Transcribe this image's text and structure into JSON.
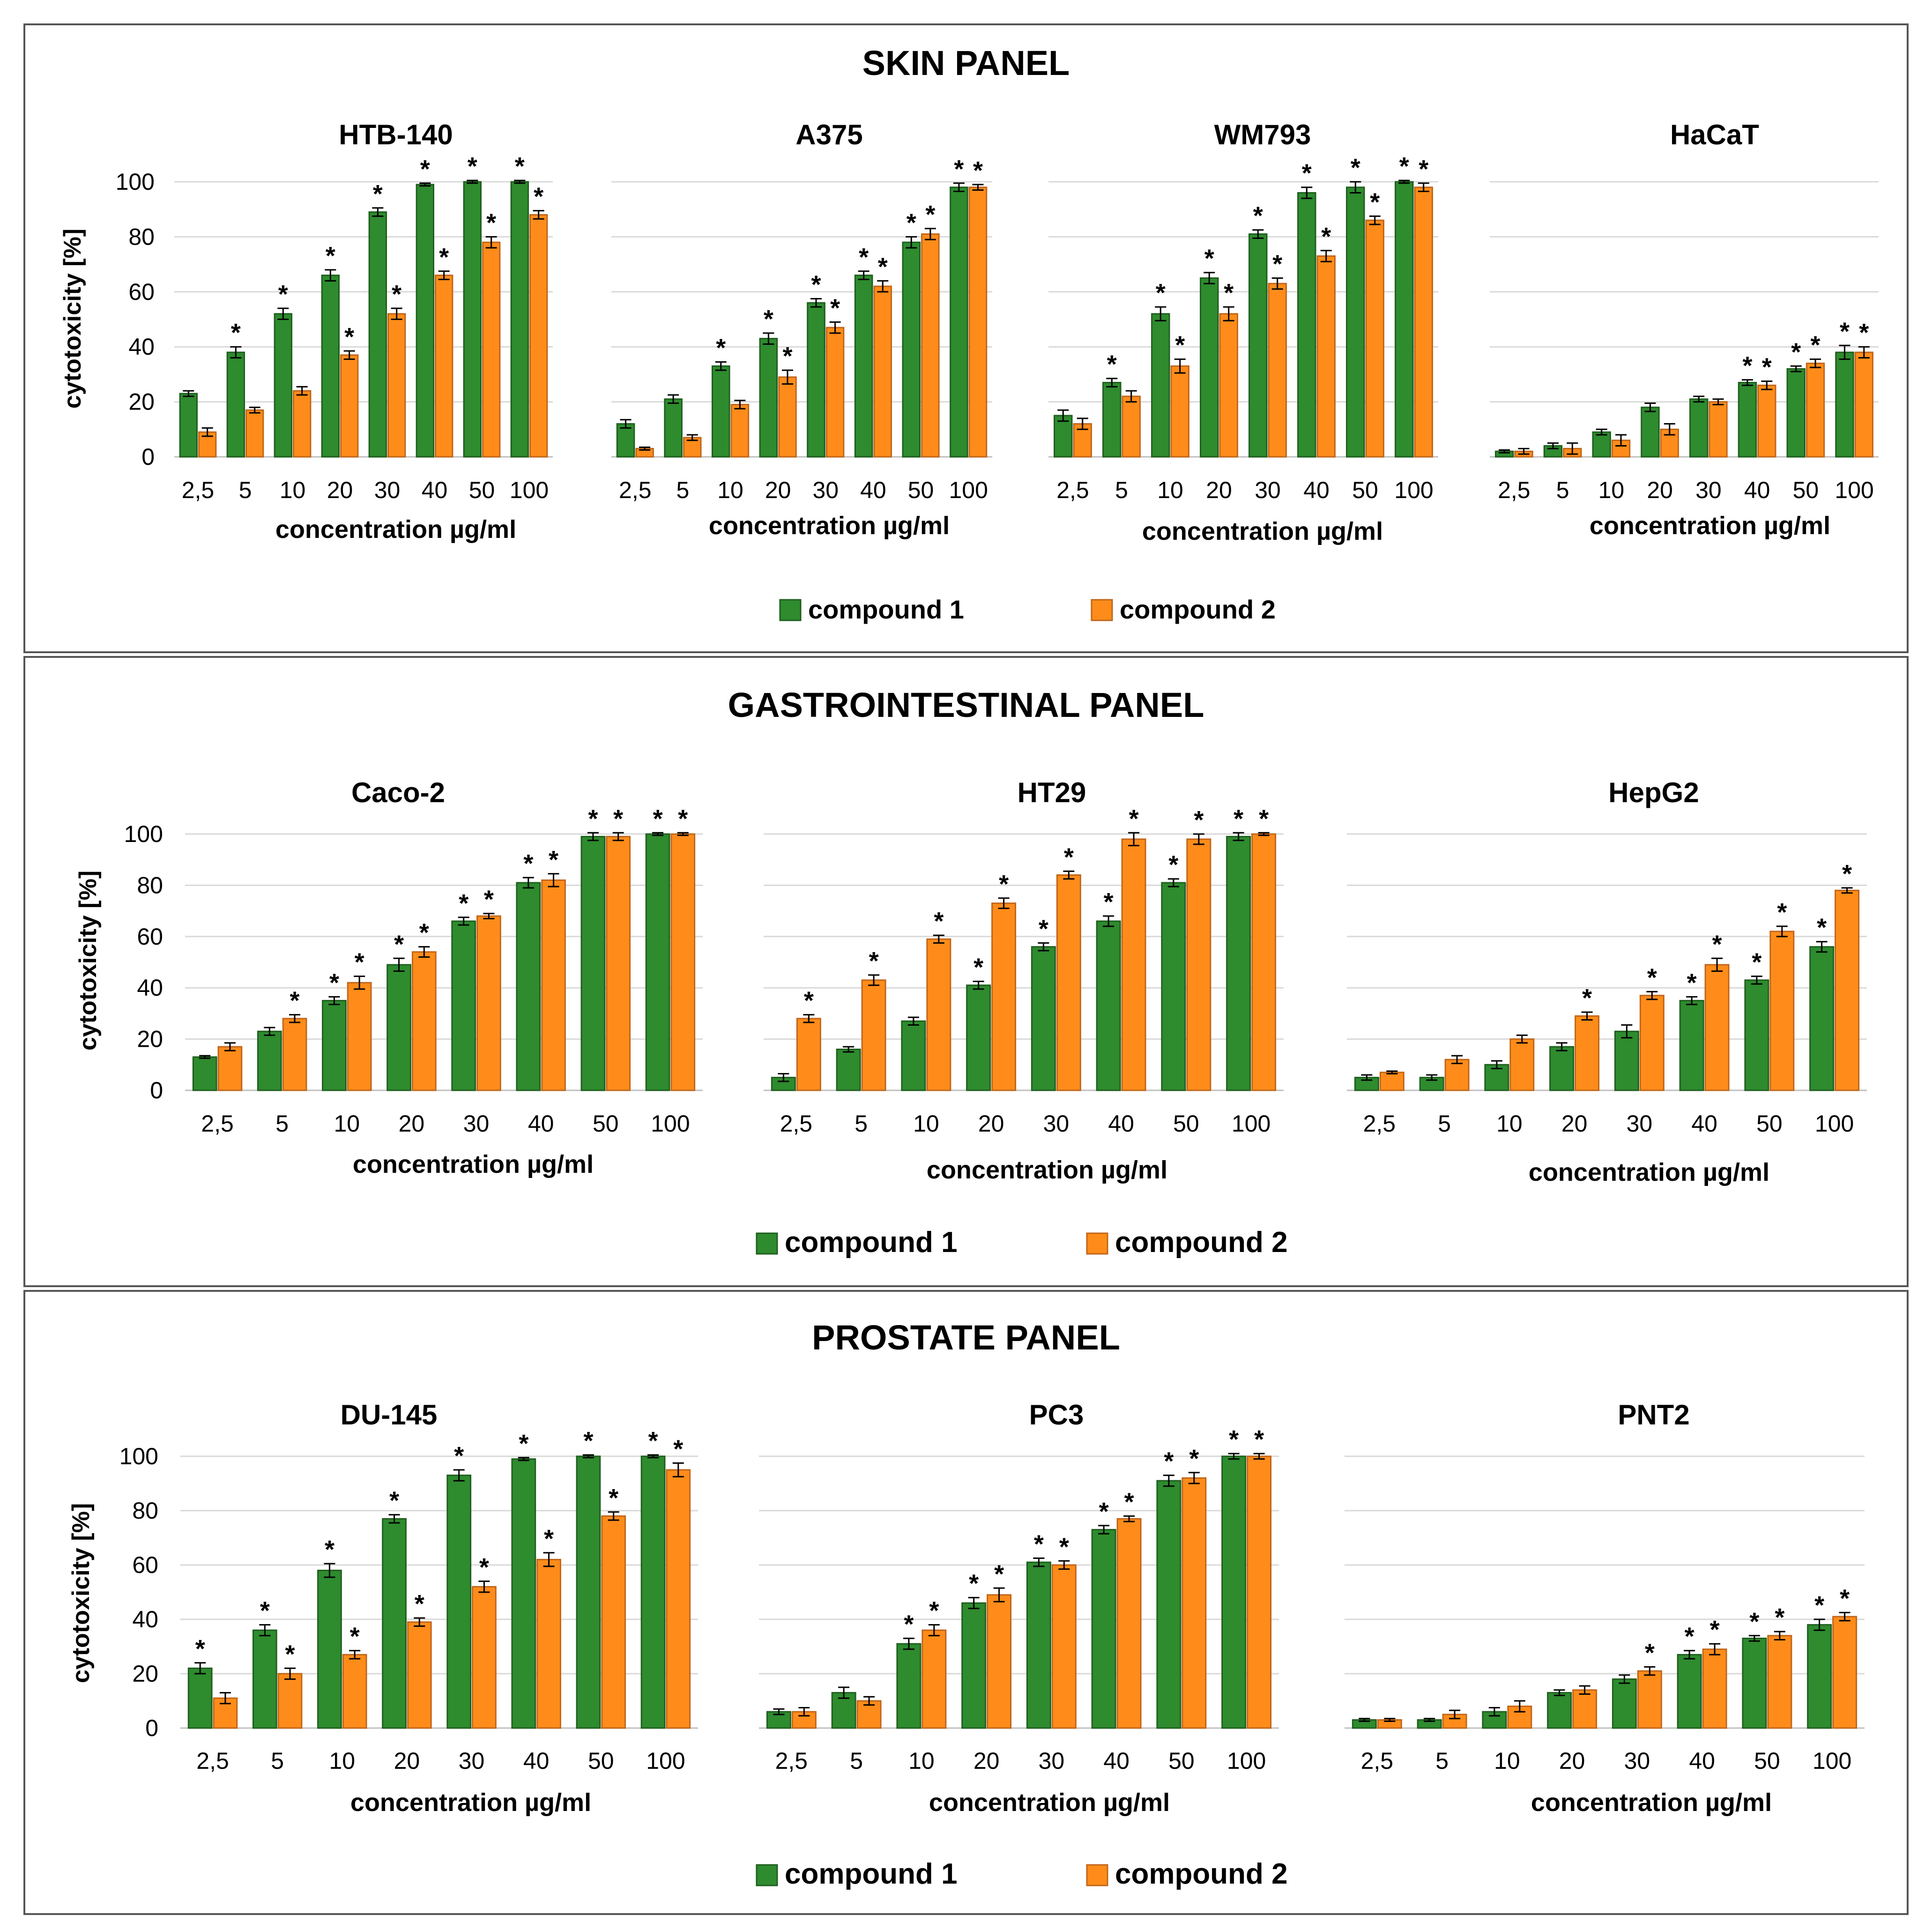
{
  "legend": {
    "compound1": "compound 1",
    "compound2": "compound 2"
  },
  "colors": {
    "compound1": "#2e8b2e",
    "compound2": "#ff8c1a",
    "frame": "#555555",
    "grid": "#d9d9d9",
    "text": "#000000"
  },
  "ylabel": "cytotoxicity [%]",
  "ylim": [
    0,
    100
  ],
  "yticks": [
    0,
    20,
    40,
    60,
    80,
    100
  ],
  "xlabel": "concentration µg/ml",
  "panels": [
    {
      "title": "SKIN PANEL",
      "charts": [
        "HTB-140",
        "A375",
        "WM793",
        "HaCaT"
      ]
    },
    {
      "title": "GASTROINTESTINAL PANEL",
      "charts": [
        "Caco-2",
        "HT29",
        "HepG2"
      ]
    },
    {
      "title": "PROSTATE PANEL",
      "charts": [
        "DU-145",
        "PC3",
        "PNT2"
      ]
    }
  ],
  "chart_data": [
    {
      "type": "bar",
      "panel": "SKIN PANEL",
      "title": "HTB-140",
      "categories": [
        "2,5",
        "5",
        "10",
        "20",
        "30",
        "40",
        "50",
        "100"
      ],
      "xlabel": "concentration µg/ml",
      "ylabel": "cytotoxicity [%]",
      "ylim": [
        0,
        100
      ],
      "series": [
        {
          "name": "compound 1",
          "values": [
            23,
            38,
            52,
            66,
            89,
            99,
            100,
            100
          ],
          "errors": [
            1,
            2,
            2,
            2,
            1.5,
            0.5,
            0.5,
            0.5
          ],
          "significant": [
            false,
            true,
            true,
            true,
            true,
            true,
            true,
            true
          ]
        },
        {
          "name": "compound 2",
          "values": [
            9,
            17,
            24,
            37,
            52,
            66,
            78,
            88
          ],
          "errors": [
            1.5,
            1,
            1.5,
            1.5,
            2,
            1.5,
            2,
            1.5
          ],
          "significant": [
            false,
            false,
            false,
            true,
            true,
            true,
            true,
            true
          ]
        }
      ]
    },
    {
      "type": "bar",
      "panel": "SKIN PANEL",
      "title": "A375",
      "categories": [
        "2,5",
        "5",
        "10",
        "20",
        "30",
        "40",
        "50",
        "100"
      ],
      "xlabel": "concentration µg/ml",
      "ylabel": "cytotoxicity [%]",
      "ylim": [
        0,
        100
      ],
      "series": [
        {
          "name": "compound 1",
          "values": [
            12,
            21,
            33,
            43,
            56,
            66,
            78,
            98
          ],
          "errors": [
            1.5,
            1.5,
            1.5,
            2,
            1.5,
            1.5,
            2,
            1.5
          ],
          "significant": [
            false,
            false,
            true,
            true,
            true,
            true,
            true,
            true
          ]
        },
        {
          "name": "compound 2",
          "values": [
            3,
            7,
            19,
            29,
            47,
            62,
            81,
            98
          ],
          "errors": [
            0.5,
            1,
            1.5,
            2.5,
            2,
            2,
            2,
            1
          ],
          "significant": [
            false,
            false,
            false,
            true,
            true,
            true,
            true,
            true
          ]
        }
      ]
    },
    {
      "type": "bar",
      "panel": "SKIN PANEL",
      "title": "WM793",
      "categories": [
        "2,5",
        "5",
        "10",
        "20",
        "30",
        "40",
        "50",
        "100"
      ],
      "xlabel": "concentration µg/ml",
      "ylabel": "cytotoxicity [%]",
      "ylim": [
        0,
        100
      ],
      "series": [
        {
          "name": "compound 1",
          "values": [
            15,
            27,
            52,
            65,
            81,
            96,
            98,
            100
          ],
          "errors": [
            2,
            1.5,
            2.5,
            2,
            1.5,
            2,
            2,
            0.5
          ],
          "significant": [
            false,
            true,
            true,
            true,
            true,
            true,
            true,
            true
          ]
        },
        {
          "name": "compound 2",
          "values": [
            12,
            22,
            33,
            52,
            63,
            73,
            86,
            98
          ],
          "errors": [
            2,
            2,
            2.5,
            2.5,
            2,
            2,
            1.5,
            1.5
          ],
          "significant": [
            false,
            false,
            true,
            true,
            true,
            true,
            true,
            true
          ]
        }
      ]
    },
    {
      "type": "bar",
      "panel": "SKIN PANEL",
      "title": "HaCaT",
      "categories": [
        "2,5",
        "5",
        "10",
        "20",
        "30",
        "40",
        "50",
        "100"
      ],
      "xlabel": "concentration µg/ml",
      "ylabel": "cytotoxicity [%]",
      "ylim": [
        0,
        100
      ],
      "series": [
        {
          "name": "compound 1",
          "values": [
            2,
            4,
            9,
            18,
            21,
            27,
            32,
            38
          ],
          "errors": [
            0.5,
            1,
            1,
            1.5,
            1,
            1,
            1,
            2.5
          ],
          "significant": [
            false,
            false,
            false,
            false,
            false,
            true,
            true,
            true
          ]
        },
        {
          "name": "compound 2",
          "values": [
            2,
            3,
            6,
            10,
            20,
            26,
            34,
            38
          ],
          "errors": [
            1,
            2,
            2,
            2,
            1,
            1.5,
            1.5,
            2
          ],
          "significant": [
            false,
            false,
            false,
            false,
            false,
            true,
            true,
            true
          ]
        }
      ]
    },
    {
      "type": "bar",
      "panel": "GASTROINTESTINAL PANEL",
      "title": "Caco-2",
      "categories": [
        "2,5",
        "5",
        "10",
        "20",
        "30",
        "40",
        "50",
        "100"
      ],
      "xlabel": "concentration µg/ml",
      "ylabel": "cytotoxicity [%]",
      "ylim": [
        0,
        100
      ],
      "series": [
        {
          "name": "compound 1",
          "values": [
            13,
            23,
            35,
            49,
            66,
            81,
            99,
            100
          ],
          "errors": [
            0.5,
            1.5,
            1.5,
            2.5,
            1.5,
            2,
            1.5,
            0.5
          ],
          "significant": [
            false,
            false,
            true,
            true,
            true,
            true,
            true,
            true
          ]
        },
        {
          "name": "compound 2",
          "values": [
            17,
            28,
            42,
            54,
            68,
            82,
            99,
            100
          ],
          "errors": [
            1.5,
            1.5,
            2.5,
            2,
            1,
            2.5,
            1.5,
            0.5
          ],
          "significant": [
            false,
            true,
            true,
            true,
            true,
            true,
            true,
            true
          ]
        }
      ]
    },
    {
      "type": "bar",
      "panel": "GASTROINTESTINAL PANEL",
      "title": "HT29",
      "categories": [
        "2,5",
        "5",
        "10",
        "20",
        "30",
        "40",
        "50",
        "100"
      ],
      "xlabel": "concentration µg/ml",
      "ylabel": "cytotoxicity [%]",
      "ylim": [
        0,
        100
      ],
      "series": [
        {
          "name": "compound 1",
          "values": [
            5,
            16,
            27,
            41,
            56,
            66,
            81,
            99
          ],
          "errors": [
            1.5,
            1,
            1.5,
            1.5,
            1.5,
            2,
            1.5,
            1.5
          ],
          "significant": [
            false,
            false,
            false,
            true,
            true,
            true,
            true,
            true
          ]
        },
        {
          "name": "compound 2",
          "values": [
            28,
            43,
            59,
            73,
            84,
            98,
            98,
            100
          ],
          "errors": [
            1.5,
            2,
            1.5,
            2,
            1.5,
            2.5,
            2,
            0.5
          ],
          "significant": [
            true,
            true,
            true,
            true,
            true,
            true,
            true,
            true
          ]
        }
      ]
    },
    {
      "type": "bar",
      "panel": "GASTROINTESTINAL PANEL",
      "title": "HepG2",
      "categories": [
        "2,5",
        "5",
        "10",
        "20",
        "30",
        "40",
        "50",
        "100"
      ],
      "xlabel": "concentration µg/ml",
      "ylabel": "cytotoxicity [%]",
      "ylim": [
        0,
        100
      ],
      "series": [
        {
          "name": "compound 1",
          "values": [
            5,
            5,
            10,
            17,
            23,
            35,
            43,
            56
          ],
          "errors": [
            1,
            1,
            1.5,
            1.5,
            2.5,
            1.5,
            1.5,
            2
          ],
          "significant": [
            false,
            false,
            false,
            false,
            false,
            true,
            true,
            true
          ]
        },
        {
          "name": "compound 2",
          "values": [
            7,
            12,
            20,
            29,
            37,
            49,
            62,
            78
          ],
          "errors": [
            0.5,
            1.5,
            1.5,
            1.5,
            1.5,
            2.5,
            2,
            1
          ],
          "significant": [
            false,
            false,
            false,
            true,
            true,
            true,
            true,
            true
          ]
        }
      ]
    },
    {
      "type": "bar",
      "panel": "PROSTATE PANEL",
      "title": "DU-145",
      "categories": [
        "2,5",
        "5",
        "10",
        "20",
        "30",
        "40",
        "50",
        "100"
      ],
      "xlabel": "concentration µg/ml",
      "ylabel": "cytotoxicity [%]",
      "ylim": [
        0,
        100
      ],
      "series": [
        {
          "name": "compound 1",
          "values": [
            22,
            36,
            58,
            77,
            93,
            99,
            100,
            100
          ],
          "errors": [
            2,
            2,
            2.5,
            1.5,
            2,
            0.5,
            0.5,
            0.5
          ],
          "significant": [
            true,
            true,
            true,
            true,
            true,
            true,
            true,
            true
          ]
        },
        {
          "name": "compound 2",
          "values": [
            11,
            20,
            27,
            39,
            52,
            62,
            78,
            95
          ],
          "errors": [
            2,
            2,
            1.5,
            1.5,
            2,
            2.5,
            1.5,
            2.5
          ],
          "significant": [
            false,
            true,
            true,
            true,
            true,
            true,
            true,
            true
          ]
        }
      ]
    },
    {
      "type": "bar",
      "panel": "PROSTATE PANEL",
      "title": "PC3",
      "categories": [
        "2,5",
        "5",
        "10",
        "20",
        "30",
        "40",
        "50",
        "100"
      ],
      "xlabel": "concentration µg/ml",
      "ylabel": "cytotoxicity [%]",
      "ylim": [
        0,
        100
      ],
      "series": [
        {
          "name": "compound 1",
          "values": [
            6,
            13,
            31,
            46,
            61,
            73,
            91,
            100
          ],
          "errors": [
            1,
            2,
            2,
            2,
            1.5,
            1.5,
            2,
            1
          ],
          "significant": [
            false,
            false,
            true,
            true,
            true,
            true,
            true,
            true
          ]
        },
        {
          "name": "compound 2",
          "values": [
            6,
            10,
            36,
            49,
            60,
            77,
            92,
            100
          ],
          "errors": [
            1.5,
            1.5,
            2,
            2.5,
            1.5,
            1,
            2,
            1
          ],
          "significant": [
            false,
            false,
            true,
            true,
            true,
            true,
            true,
            true
          ]
        }
      ]
    },
    {
      "type": "bar",
      "panel": "PROSTATE PANEL",
      "title": "PNT2",
      "categories": [
        "2,5",
        "5",
        "10",
        "20",
        "30",
        "40",
        "50",
        "100"
      ],
      "xlabel": "concentration µg/ml",
      "ylabel": "cytotoxicity [%]",
      "ylim": [
        0,
        100
      ],
      "series": [
        {
          "name": "compound 1",
          "values": [
            3,
            3,
            6,
            13,
            18,
            27,
            33,
            38
          ],
          "errors": [
            0.5,
            0.5,
            1.5,
            1,
            1.5,
            1.5,
            1,
            2
          ],
          "significant": [
            false,
            false,
            false,
            false,
            false,
            true,
            true,
            true
          ]
        },
        {
          "name": "compound 2",
          "values": [
            3,
            5,
            8,
            14,
            21,
            29,
            34,
            41
          ],
          "errors": [
            0.5,
            1.5,
            2,
            1.5,
            1.5,
            2,
            1.5,
            1.5
          ],
          "significant": [
            false,
            false,
            false,
            false,
            true,
            true,
            true,
            true
          ]
        }
      ]
    }
  ]
}
